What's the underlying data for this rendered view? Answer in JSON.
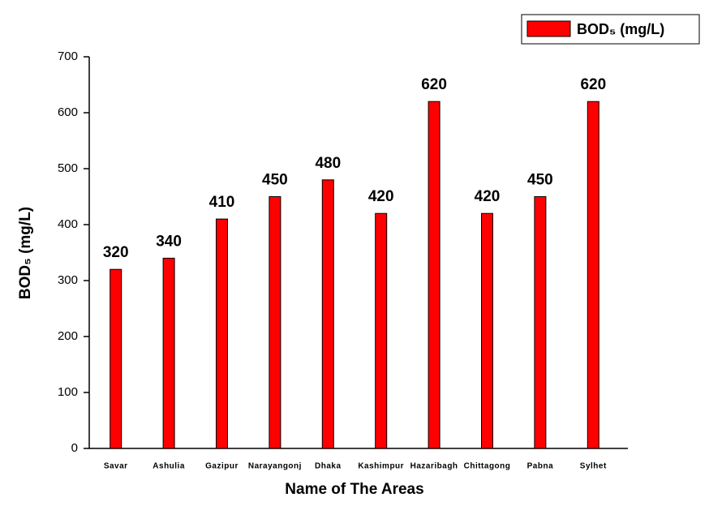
{
  "chart_data": {
    "type": "bar",
    "x_label": "Name of The Areas",
    "y_label": "BOD₅ (mg/L)",
    "categories": [
      "Savar",
      "Ashulia",
      "Gazipur",
      "Narayangonj",
      "Dhaka",
      "Kashimpur",
      "Hazaribagh",
      "Chittagong",
      "Pabna",
      "Sylhet"
    ],
    "series": [
      {
        "name": "BOD₅ (mg/L)",
        "color": "#ff0000",
        "values": [
          320,
          340,
          410,
          450,
          480,
          420,
          620,
          420,
          450,
          620
        ]
      }
    ],
    "ylim": [
      0,
      700
    ],
    "yticks": [
      0,
      100,
      200,
      300,
      400,
      500,
      600,
      700
    ],
    "grid": false,
    "legend": "top-right"
  }
}
